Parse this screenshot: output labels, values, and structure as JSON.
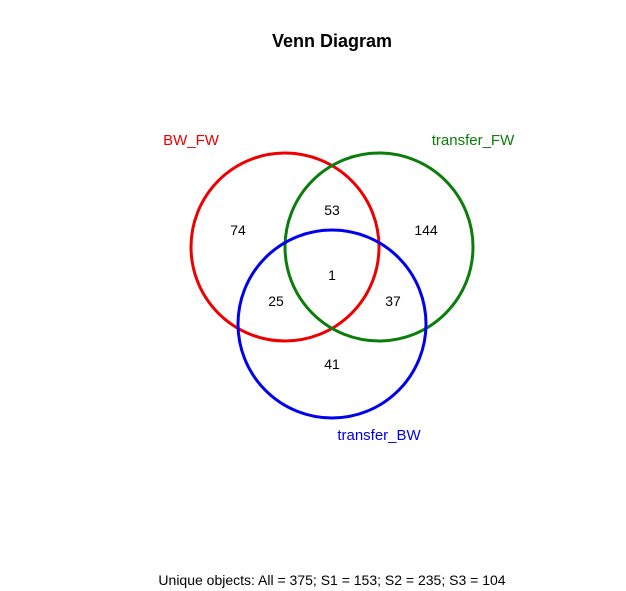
{
  "title": "Venn Diagram",
  "sets": [
    {
      "id": "s1",
      "label": "BW_FW",
      "color": "#ee0000"
    },
    {
      "id": "s2",
      "label": "transfer_FW",
      "color": "#0a7d0a"
    },
    {
      "id": "s3",
      "label": "transfer_BW",
      "color": "#0000ee"
    }
  ],
  "regions": {
    "only_bw_fw": "74",
    "only_transfer_fw": "144",
    "only_transfer_bw": "41",
    "bw_fw_and_transfer_fw": "53",
    "bw_fw_and_transfer_bw": "25",
    "transfer_fw_and_transfer_bw": "37",
    "all_three": "1"
  },
  "summary": "Unique objects: All = 375; S1 = 153; S2 = 235; S3 = 104"
}
